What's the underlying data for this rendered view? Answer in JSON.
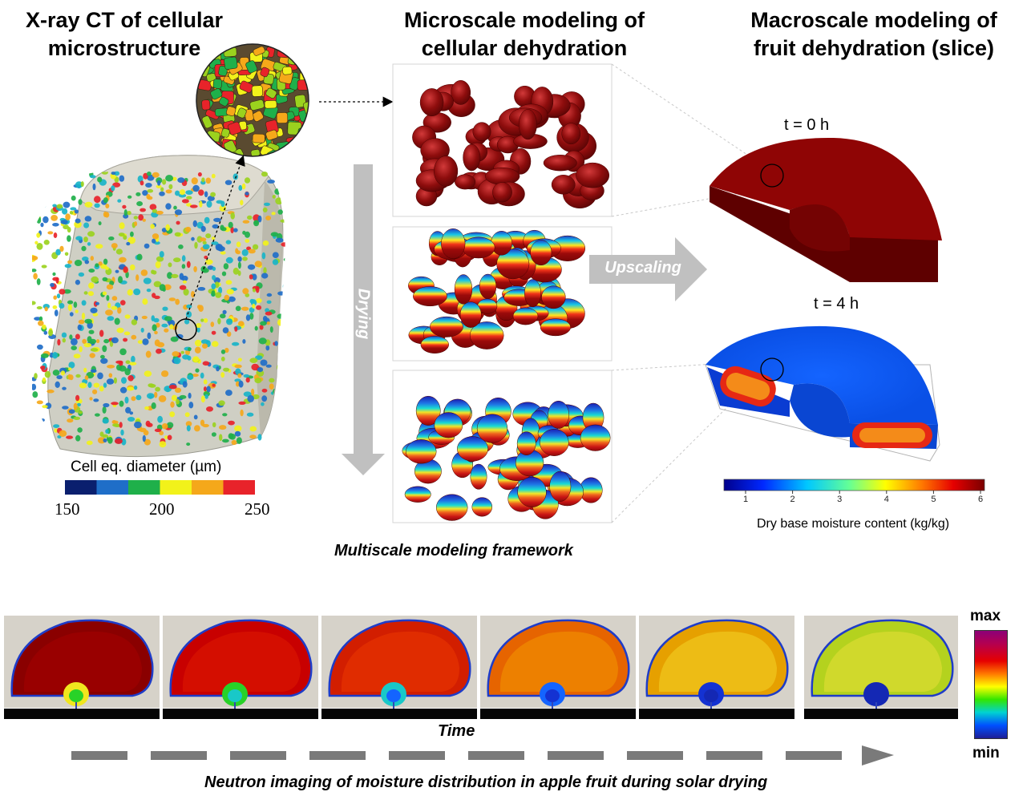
{
  "titles": {
    "xray": [
      "X-ray CT of cellular",
      "microstructure"
    ],
    "micro": [
      "Microscale modeling of",
      "cellular dehydration"
    ],
    "macro": [
      "Macroscale modeling of",
      "fruit dehydration (slice)"
    ]
  },
  "arrows": {
    "drying": "Drying",
    "upscaling": "Upscaling"
  },
  "time_labels": {
    "t0": "t = 0 h",
    "t4": "t = 4 h"
  },
  "cell_legend": {
    "label": "Cell eq. diameter (µm)",
    "ticks": [
      "150",
      "200",
      "250"
    ],
    "colors": [
      "#0a1f6e",
      "#1f6ec8",
      "#1fb04a",
      "#f2f21a",
      "#f5a81a",
      "#e8232a"
    ]
  },
  "moisture_colorbar": {
    "ticks": [
      "1",
      "2",
      "3",
      "4",
      "5",
      "6"
    ],
    "label": "Dry base moisture content (kg/kg)"
  },
  "framework_caption": "Multiscale modeling framework",
  "neutron": {
    "time_label": "Time",
    "caption": "Neutron imaging of moisture distribution in apple fruit during solar drying",
    "scale_max": "max",
    "scale_min": "min",
    "frame_count": 6
  },
  "colors": {
    "arrow_gray": "#c0c0c0",
    "cell_red": "#8b0a0a",
    "dash_gray": "#7a7a7a"
  }
}
